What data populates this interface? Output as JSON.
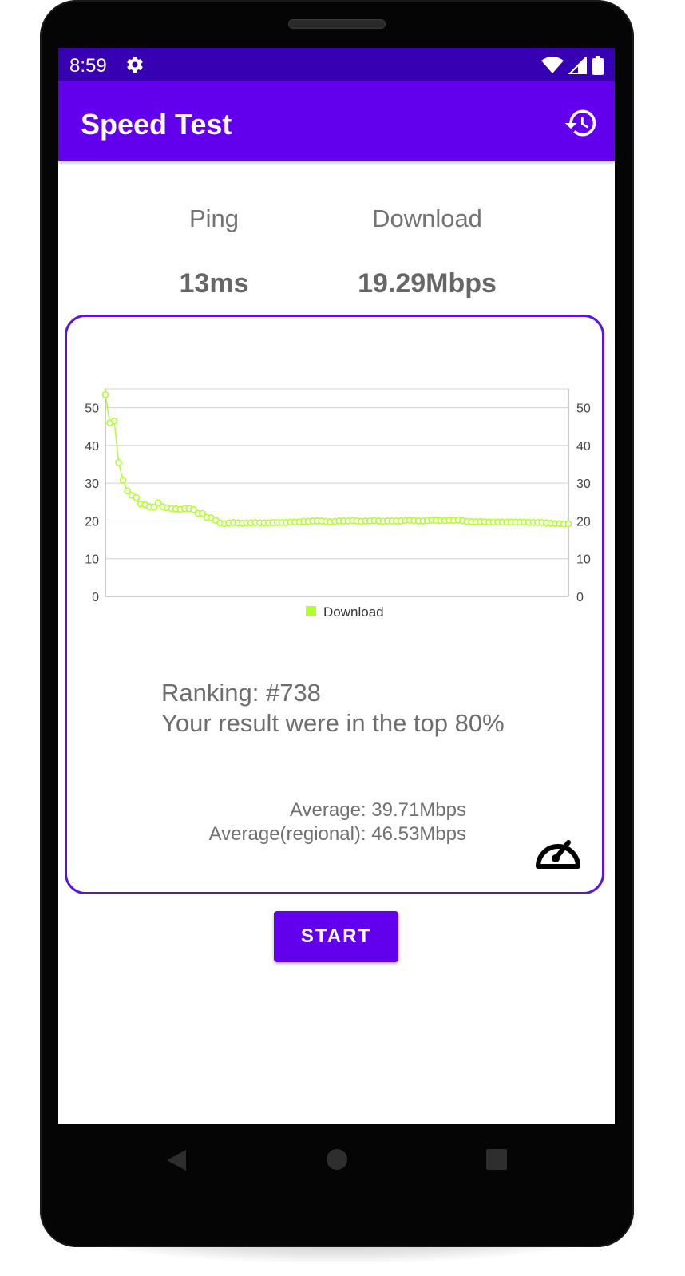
{
  "status_bar": {
    "time": "8:59"
  },
  "app_bar": {
    "title": "Speed Test"
  },
  "stats": {
    "ping_label": "Ping",
    "ping_value": "13ms",
    "download_label": "Download",
    "download_value": "19.29Mbps"
  },
  "chart_data": {
    "type": "line",
    "title": "",
    "xlabel": "",
    "ylabel": "",
    "ylim": [
      0,
      55
    ],
    "y_ticks": [
      "0",
      "10",
      "20",
      "30",
      "40",
      "50"
    ],
    "dual_y_axis": true,
    "legend_position": "bottom-center",
    "grid": true,
    "series": [
      {
        "name": "Download",
        "color": "#b2ff2e",
        "values": [
          53.5,
          46,
          46.5,
          35.5,
          30.8,
          28,
          26.8,
          26.2,
          24.5,
          24.3,
          23.8,
          23.7,
          24.8,
          23.8,
          23.5,
          23.3,
          23.2,
          23.1,
          23.3,
          23.3,
          23,
          22,
          22,
          21,
          20.8,
          20.2,
          19.5,
          19.3,
          19.5,
          19.6,
          19.5,
          19.4,
          19.5,
          19.5,
          19.6,
          19.5,
          19.5,
          19.5,
          19.6,
          19.6,
          19.6,
          19.6,
          19.7,
          19.7,
          19.8,
          19.9,
          19.9,
          20,
          20,
          20,
          19.9,
          19.8,
          19.9,
          20,
          20,
          20,
          20.1,
          20,
          19.9,
          20,
          20,
          20.1,
          20,
          19.9,
          20,
          20,
          20,
          20,
          20.1,
          20.2,
          20.1,
          20,
          20,
          20.1,
          20.2,
          20.2,
          20.1,
          20.1,
          20.2,
          20.2,
          20.3,
          20.1,
          19.9,
          19.8,
          19.8,
          19.8,
          19.8,
          19.7,
          19.7,
          19.7,
          19.7,
          19.7,
          19.7,
          19.7,
          19.7,
          19.7,
          19.6,
          19.6,
          19.6,
          19.6,
          19.5,
          19.4,
          19.3,
          19.3,
          19.2,
          19.3
        ]
      }
    ]
  },
  "ranking": {
    "line1": "Ranking: #738",
    "line2": "Your result were in the top 80%"
  },
  "averages": {
    "average": "Average: 39.71Mbps",
    "regional": "Average(regional): 46.53Mbps"
  },
  "start_button": {
    "label": "START"
  },
  "icons": {
    "settings": "gear-icon",
    "wifi": "wifi-icon",
    "signal": "signal-icon",
    "battery": "battery-icon",
    "history": "history-icon",
    "gauge": "speedometer-icon",
    "back": "back-icon",
    "home": "home-icon",
    "recents": "recents-icon"
  },
  "colors": {
    "app_bar": "#6200ee",
    "status_bar": "#3700b3",
    "card_border": "#5a14e0",
    "series": "#b2ff2e"
  }
}
